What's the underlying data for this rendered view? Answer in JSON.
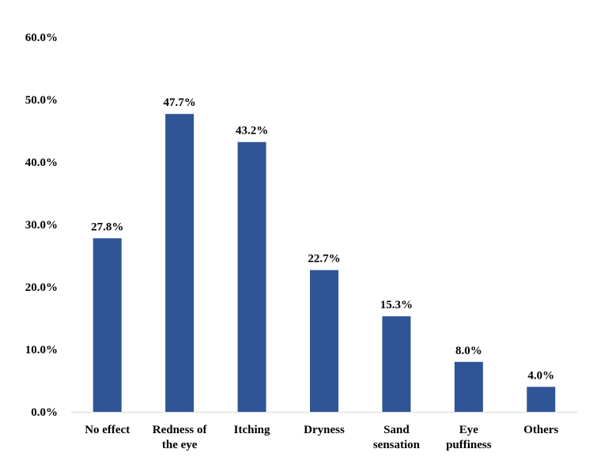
{
  "chart_data": {
    "type": "bar",
    "title": "",
    "xlabel": "",
    "ylabel": "",
    "categories": [
      [
        "No effect"
      ],
      [
        "Redness of",
        "the eye"
      ],
      [
        "Itching"
      ],
      [
        "Dryness"
      ],
      [
        "Sand",
        "sensation"
      ],
      [
        "Eye",
        "puffiness"
      ],
      [
        "Others"
      ]
    ],
    "values": [
      27.8,
      47.7,
      43.2,
      22.7,
      15.3,
      8.0,
      4.0
    ],
    "value_labels": [
      "27.8%",
      "47.7%",
      "43.2%",
      "22.7%",
      "15.3%",
      "8.0%",
      "4.0%"
    ],
    "ylim": [
      0,
      60
    ],
    "y_ticks": [
      0,
      10,
      20,
      30,
      40,
      50,
      60
    ],
    "y_tick_labels": [
      "0.0%",
      "10.0%",
      "20.0%",
      "30.0%",
      "40.0%",
      "50.0%",
      "60.0%"
    ],
    "grid": false,
    "legend": "none",
    "colors": {
      "bar": "#2F5597",
      "axis": "#D9D9D9",
      "text": "#000000"
    }
  }
}
